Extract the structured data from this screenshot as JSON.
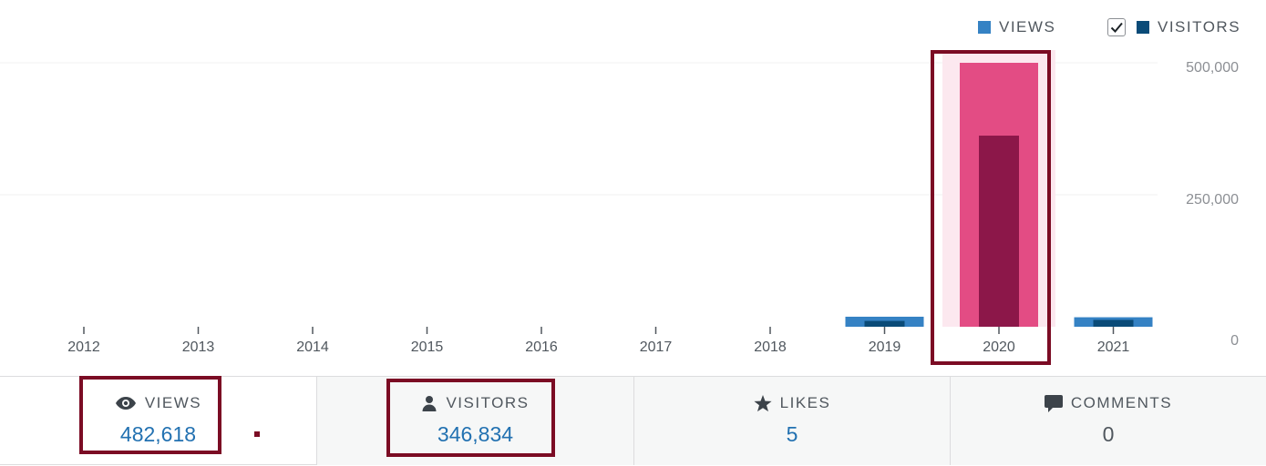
{
  "legend": {
    "views_label": "VIEWS",
    "visitors_label": "VISITORS"
  },
  "chart_data": {
    "type": "bar",
    "categories": [
      "2012",
      "2013",
      "2014",
      "2015",
      "2016",
      "2017",
      "2018",
      "2019",
      "2020",
      "2021"
    ],
    "series": [
      {
        "name": "VIEWS",
        "values": [
          0,
          0,
          0,
          0,
          0,
          0,
          0,
          19000,
          500000,
          18000
        ]
      },
      {
        "name": "VISITORS",
        "values": [
          0,
          0,
          0,
          0,
          0,
          0,
          0,
          11000,
          362000,
          13000
        ]
      }
    ],
    "yticks": [
      "0",
      "250,000",
      "500,000"
    ],
    "ytick_values": [
      0,
      250000,
      500000
    ],
    "ylim": [
      0,
      500000
    ],
    "highlighted_category": "2020",
    "colors": {
      "views": "#3582c4",
      "visitors": "#0a4b78",
      "views_highlight": "#e34c84",
      "visitors_highlight": "#8c1749",
      "highlight_band": "#fce8ef",
      "grid": "#f0f0f1"
    }
  },
  "stats": [
    {
      "label": "VIEWS",
      "value": "482,618",
      "icon": "eye-icon"
    },
    {
      "label": "VISITORS",
      "value": "346,834",
      "icon": "person-icon"
    },
    {
      "label": "LIKES",
      "value": "5",
      "icon": "star-icon"
    },
    {
      "label": "COMMENTS",
      "value": "0",
      "icon": "comment-icon"
    }
  ],
  "annotation_color": "#7b0c24"
}
